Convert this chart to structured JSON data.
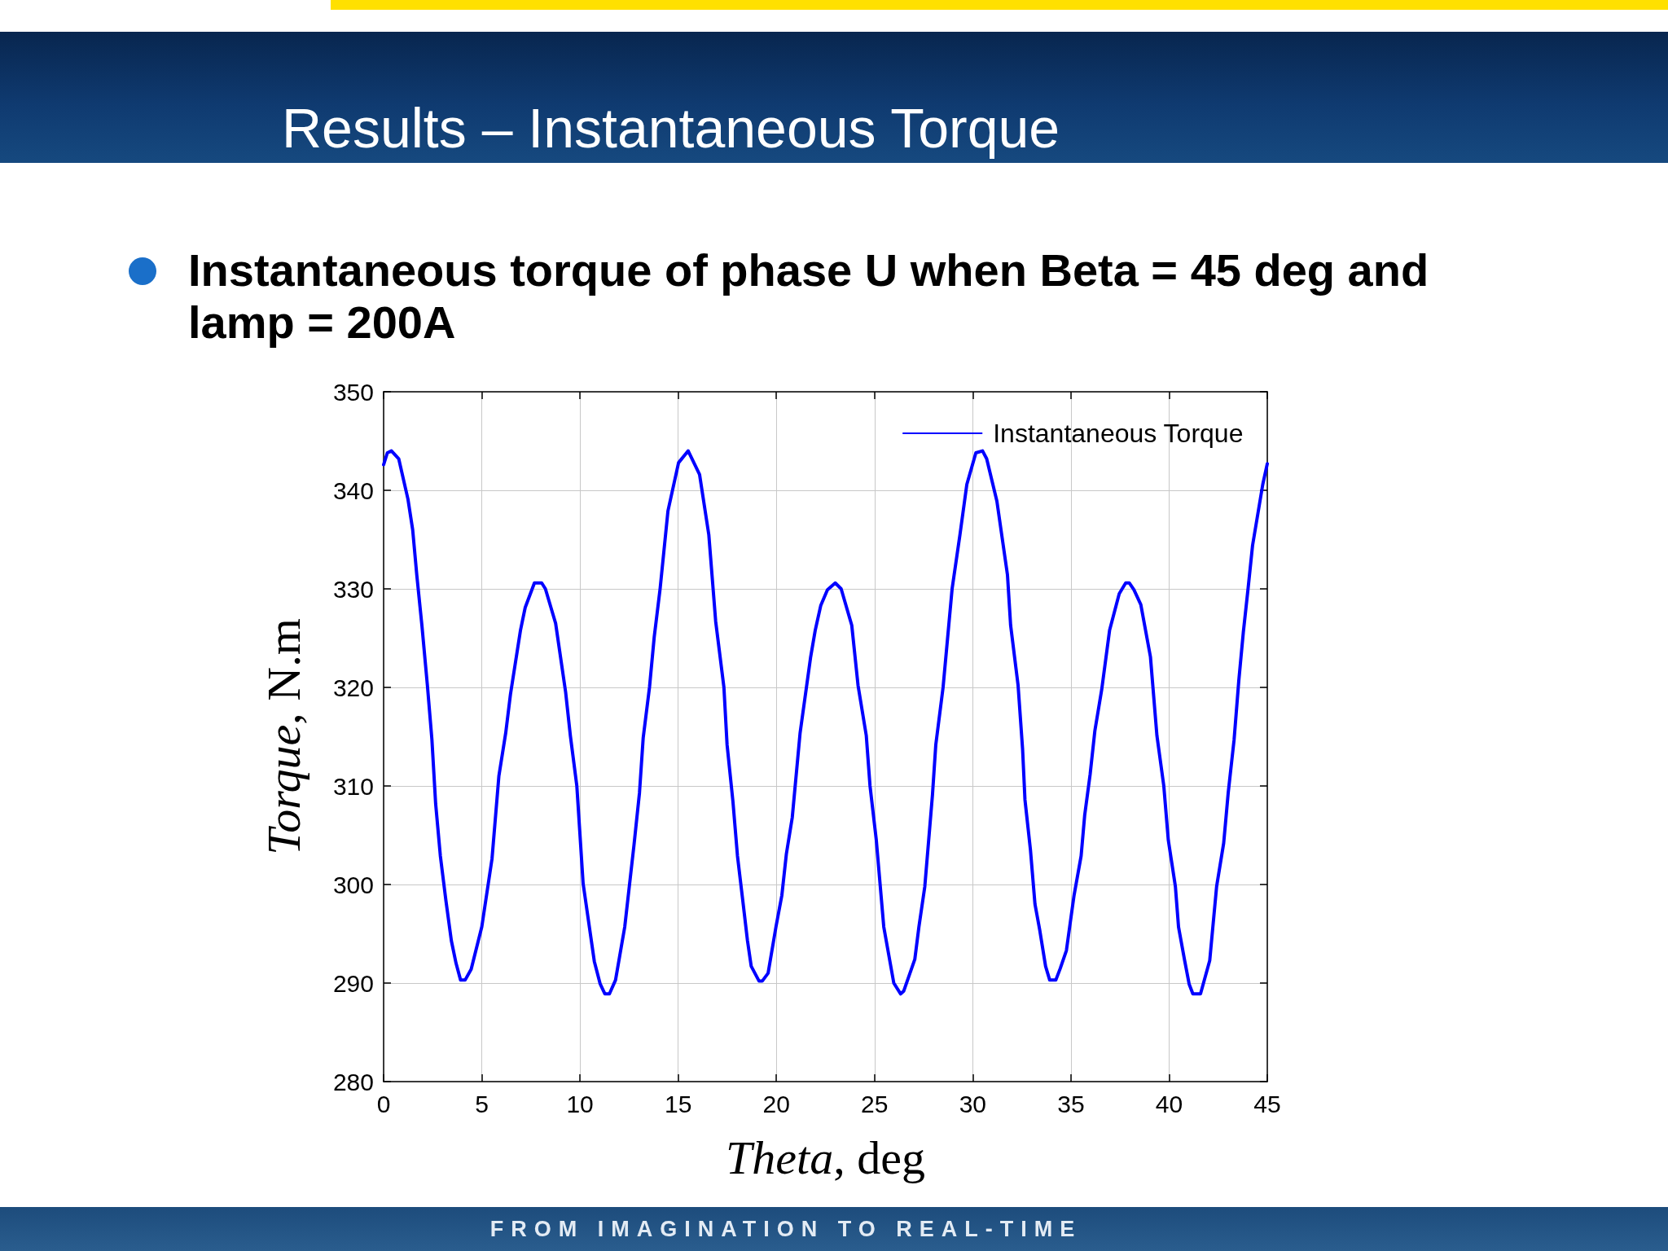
{
  "chart_data": {
    "type": "line",
    "title": "Results – Instantaneous Torque",
    "subtitle": "Instantaneous torque of phase U when Beta = 45 deg and lamp = 200A",
    "xlabel": "Theta, deg",
    "ylabel": "Torque, N.m",
    "annotations": [
      "FROM IMAGINATION TO REAL-TIME"
    ],
    "x": [
      0,
      0.19,
      0.4,
      0.77,
      1.24,
      1.48,
      1.69,
      1.95,
      2.23,
      2.46,
      2.65,
      2.89,
      3.17,
      3.45,
      3.69,
      3.92,
      4.15,
      4.46,
      5.0,
      5.52,
      5.87,
      6.22,
      6.46,
      6.97,
      7.21,
      7.68,
      8.05,
      8.24,
      8.76,
      9.27,
      9.51,
      9.84,
      10.16,
      10.73,
      11.03,
      11.27,
      11.5,
      11.81,
      12.28,
      12.75,
      13.03,
      13.22,
      13.54,
      13.78,
      14.08,
      14.48,
      15.02,
      15.51,
      16.09,
      16.56,
      16.91,
      17.33,
      17.49,
      17.79,
      18.02,
      18.3,
      18.53,
      18.72,
      19.12,
      19.28,
      19.58,
      19.98,
      20.28,
      20.51,
      20.81,
      21.21,
      21.74,
      21.98,
      22.26,
      22.6,
      23.0,
      23.3,
      23.84,
      24.16,
      24.58,
      24.77,
      25.09,
      25.47,
      25.98,
      26.33,
      26.49,
      27.05,
      27.26,
      27.56,
      27.95,
      28.12,
      28.49,
      28.95,
      29.35,
      29.7,
      30.16,
      30.5,
      30.71,
      31.23,
      31.77,
      31.93,
      32.31,
      32.54,
      32.66,
      32.94,
      33.17,
      33.41,
      33.71,
      33.92,
      34.23,
      34.46,
      34.77,
      35.16,
      35.52,
      35.7,
      35.98,
      36.22,
      36.57,
      36.97,
      37.46,
      37.79,
      37.97,
      38.21,
      38.56,
      39.05,
      39.38,
      39.73,
      39.96,
      40.32,
      40.48,
      40.78,
      41.02,
      41.21,
      41.6,
      42.07,
      42.42,
      42.78,
      43.01,
      43.31,
      43.55,
      43.78,
      44.02,
      44.25,
      44.77,
      45
    ],
    "series": [
      {
        "name": "Instantaneous Torque",
        "color": "#0000ff",
        "values": [
          342.6,
          343.8,
          344.0,
          343.2,
          339.1,
          336.0,
          331.4,
          326.3,
          320.2,
          314.7,
          308.2,
          302.9,
          298.4,
          294.3,
          292.0,
          290.3,
          290.3,
          291.4,
          295.7,
          302.6,
          311.0,
          315.4,
          319.3,
          325.8,
          328.1,
          330.6,
          330.6,
          330.0,
          326.5,
          319.5,
          315.1,
          310.0,
          300.1,
          292.2,
          289.9,
          288.9,
          288.9,
          290.3,
          295.7,
          304.0,
          309.3,
          314.9,
          320.0,
          325.1,
          330.0,
          337.9,
          342.8,
          344.0,
          341.6,
          335.5,
          326.7,
          320.0,
          314.2,
          308.4,
          302.9,
          298.2,
          294.3,
          291.7,
          290.2,
          290.2,
          291.0,
          295.7,
          298.9,
          303.1,
          306.8,
          315.4,
          323.0,
          325.8,
          328.3,
          329.9,
          330.6,
          330.0,
          326.3,
          320.2,
          315.1,
          310.0,
          304.5,
          295.7,
          290.0,
          288.9,
          289.2,
          292.4,
          295.7,
          299.8,
          309.1,
          314.2,
          320.0,
          330.0,
          335.5,
          340.6,
          343.8,
          344.0,
          343.2,
          338.9,
          331.4,
          326.3,
          320.2,
          313.7,
          308.6,
          303.5,
          298.0,
          295.4,
          291.7,
          290.3,
          290.3,
          291.5,
          293.3,
          298.9,
          302.9,
          307.0,
          311.2,
          315.6,
          319.8,
          325.8,
          329.5,
          330.6,
          330.6,
          329.9,
          328.4,
          323.1,
          315.1,
          310.0,
          304.5,
          299.8,
          295.7,
          292.4,
          289.9,
          288.9,
          288.9,
          292.3,
          299.8,
          304.2,
          309.3,
          314.7,
          320.7,
          325.6,
          330.0,
          334.4,
          340.6,
          342.7
        ]
      }
    ],
    "xlim": [
      0,
      45
    ],
    "xticks": [
      0,
      5,
      10,
      15,
      20,
      25,
      30,
      35,
      40,
      45
    ],
    "ylim": [
      280,
      350
    ],
    "yticks": [
      280,
      290,
      300,
      310,
      320,
      330,
      340,
      350
    ],
    "grid": true,
    "legend": "top right",
    "marker": "none",
    "line_style": "solid"
  }
}
